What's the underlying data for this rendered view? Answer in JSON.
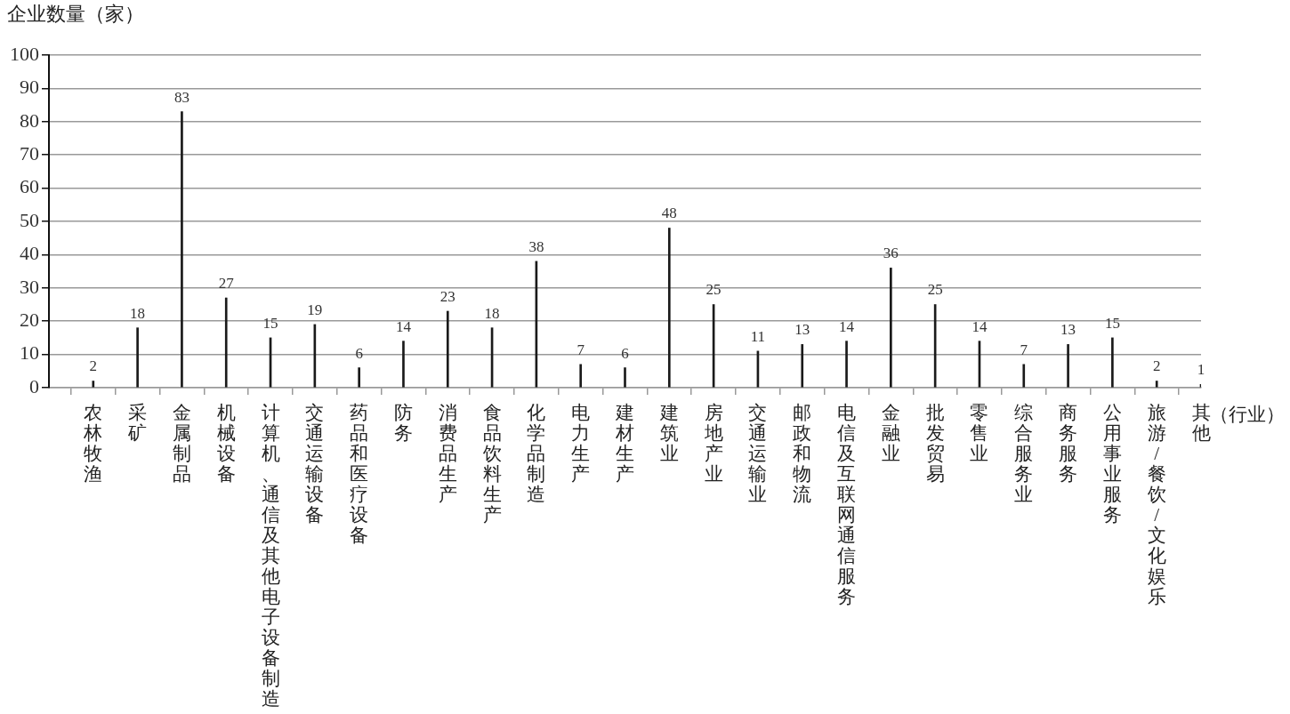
{
  "chart_data": {
    "type": "bar",
    "ylabel": "企业数量（家）",
    "xlabel": "（行业）",
    "categories": [
      "农林牧渔",
      "采矿",
      "金属制品",
      "机械设备",
      "计算机、通信及其他电子设备制造",
      "交通运输设备",
      "药品和医疗设备",
      "防务",
      "消费品生产",
      "食品饮料生产",
      "化学品制造",
      "电力生产",
      "建材生产",
      "建筑业",
      "房地产业",
      "交通运输业",
      "邮政和物流",
      "电信及互联网通信服务",
      "金融业",
      "批发贸易",
      "零售业",
      "综合服务业",
      "商务服务",
      "公用事业服务",
      "旅游/餐饮/文化娱乐",
      "其他"
    ],
    "values": [
      2,
      18,
      83,
      27,
      15,
      19,
      6,
      14,
      23,
      18,
      38,
      7,
      6,
      48,
      25,
      11,
      13,
      14,
      36,
      25,
      14,
      7,
      13,
      15,
      2,
      1
    ],
    "color": "#1a1a1a",
    "ylim": [
      0,
      100
    ],
    "yticks": [
      0,
      10,
      20,
      30,
      40,
      50,
      60,
      70,
      80,
      90,
      100
    ],
    "grid": "y",
    "data_labels": true,
    "legend": false
  }
}
